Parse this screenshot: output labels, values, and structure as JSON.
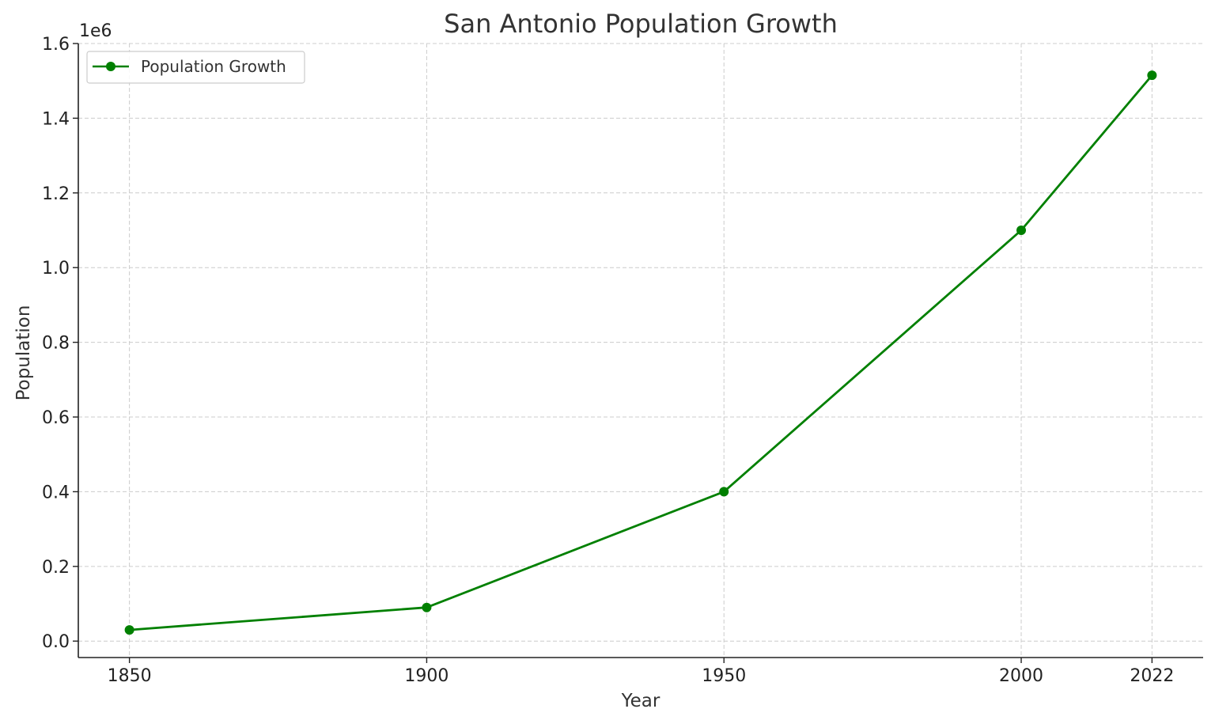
{
  "chart_data": {
    "type": "line",
    "title": "San Antonio Population Growth",
    "xlabel": "Year",
    "ylabel": "Population",
    "y_offset_text": "1e6",
    "x": [
      1850,
      1900,
      1950,
      2000,
      2022
    ],
    "x_ticks": [
      "1850",
      "1900",
      "1950",
      "2000",
      "2022"
    ],
    "y_ticks": [
      "0.0",
      "0.2",
      "0.4",
      "0.6",
      "0.8",
      "1.0",
      "1.2",
      "1.4",
      "1.6"
    ],
    "y_tick_values": [
      0,
      200000,
      400000,
      600000,
      800000,
      1000000,
      1200000,
      1400000,
      1600000
    ],
    "xlim": [
      1841.4,
      2030.6
    ],
    "ylim": [
      -44000,
      1600000
    ],
    "grid": true,
    "legend_position": "top-left",
    "series": [
      {
        "name": "Population Growth",
        "color": "#008000",
        "marker": "circle",
        "values": [
          30000,
          90000,
          400000,
          1100000,
          1515000
        ]
      }
    ]
  }
}
